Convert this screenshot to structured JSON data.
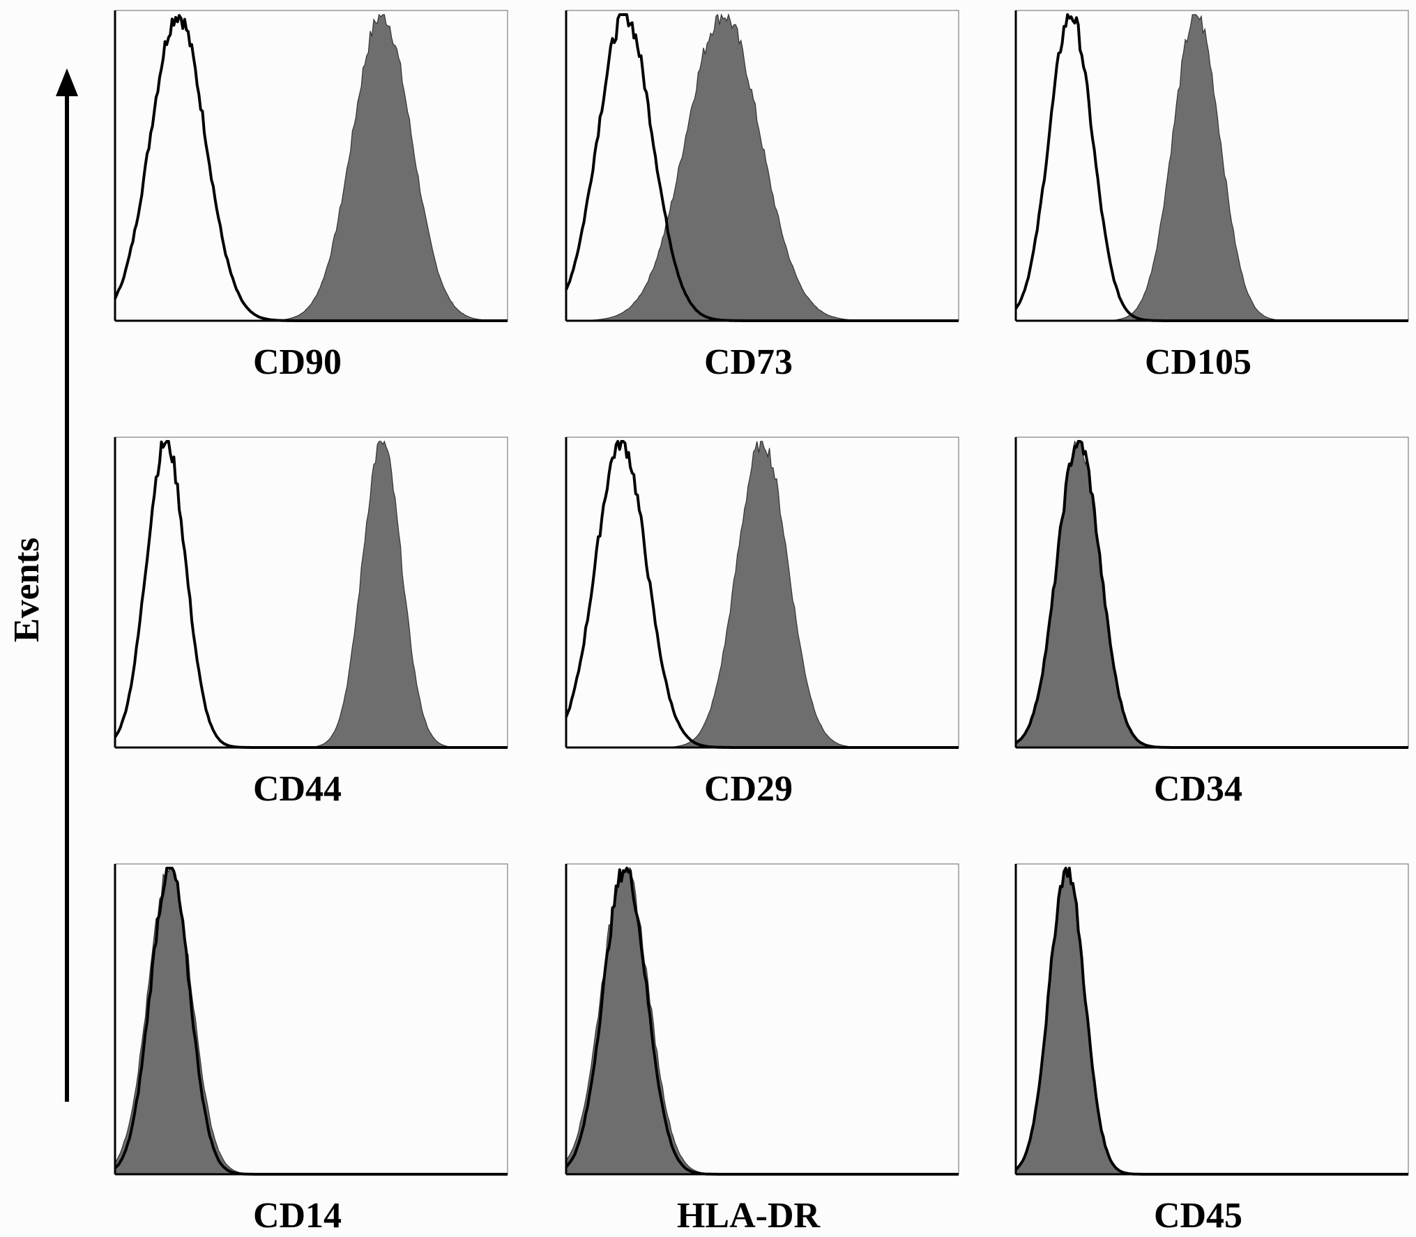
{
  "y_axis_label": "Events",
  "colors": {
    "background": "#fcfcfc",
    "stained_fill": "#6e6e6e",
    "isotype_line": "#000000",
    "axis": "#000000"
  },
  "chart_data": [
    {
      "type": "area",
      "title": "CD90",
      "xlim": [
        0,
        1
      ],
      "ylim": [
        0,
        1
      ],
      "grid": false,
      "isotype": {
        "center": 0.16,
        "width": 0.07
      },
      "stained": {
        "center": 0.68,
        "width": 0.075
      }
    },
    {
      "type": "area",
      "title": "CD73",
      "xlim": [
        0,
        1
      ],
      "ylim": [
        0,
        1
      ],
      "grid": false,
      "isotype": {
        "center": 0.15,
        "width": 0.07
      },
      "stained": {
        "center": 0.4,
        "width": 0.095
      }
    },
    {
      "type": "area",
      "title": "CD105",
      "xlim": [
        0,
        1
      ],
      "ylim": [
        0,
        1
      ],
      "grid": false,
      "isotype": {
        "center": 0.14,
        "width": 0.055
      },
      "stained": {
        "center": 0.46,
        "width": 0.06
      }
    },
    {
      "type": "area",
      "title": "CD44",
      "xlim": [
        0,
        1
      ],
      "ylim": [
        0,
        1
      ],
      "grid": false,
      "isotype": {
        "center": 0.13,
        "width": 0.05
      },
      "stained": {
        "center": 0.68,
        "width": 0.05
      }
    },
    {
      "type": "area",
      "title": "CD29",
      "xlim": [
        0,
        1
      ],
      "ylim": [
        0,
        1
      ],
      "grid": false,
      "isotype": {
        "center": 0.14,
        "width": 0.065
      },
      "stained": {
        "center": 0.5,
        "width": 0.065
      }
    },
    {
      "type": "area",
      "title": "CD34",
      "xlim": [
        0,
        1
      ],
      "ylim": [
        0,
        1
      ],
      "grid": false,
      "isotype": {
        "center": 0.16,
        "width": 0.055
      },
      "stained": {
        "center": 0.16,
        "width": 0.055
      }
    },
    {
      "type": "area",
      "title": "CD14",
      "xlim": [
        0,
        1
      ],
      "ylim": [
        0,
        1
      ],
      "grid": false,
      "isotype": {
        "center": 0.14,
        "width": 0.05
      },
      "stained": {
        "center": 0.14,
        "width": 0.055
      }
    },
    {
      "type": "area",
      "title": "HLA-DR",
      "xlim": [
        0,
        1
      ],
      "ylim": [
        0,
        1
      ],
      "grid": false,
      "isotype": {
        "center": 0.15,
        "width": 0.055
      },
      "stained": {
        "center": 0.15,
        "width": 0.06
      }
    },
    {
      "type": "area",
      "title": "CD45",
      "xlim": [
        0,
        1
      ],
      "ylim": [
        0,
        1
      ],
      "grid": false,
      "isotype": {
        "center": 0.13,
        "width": 0.045
      },
      "stained": {
        "center": 0.13,
        "width": 0.045
      }
    }
  ]
}
